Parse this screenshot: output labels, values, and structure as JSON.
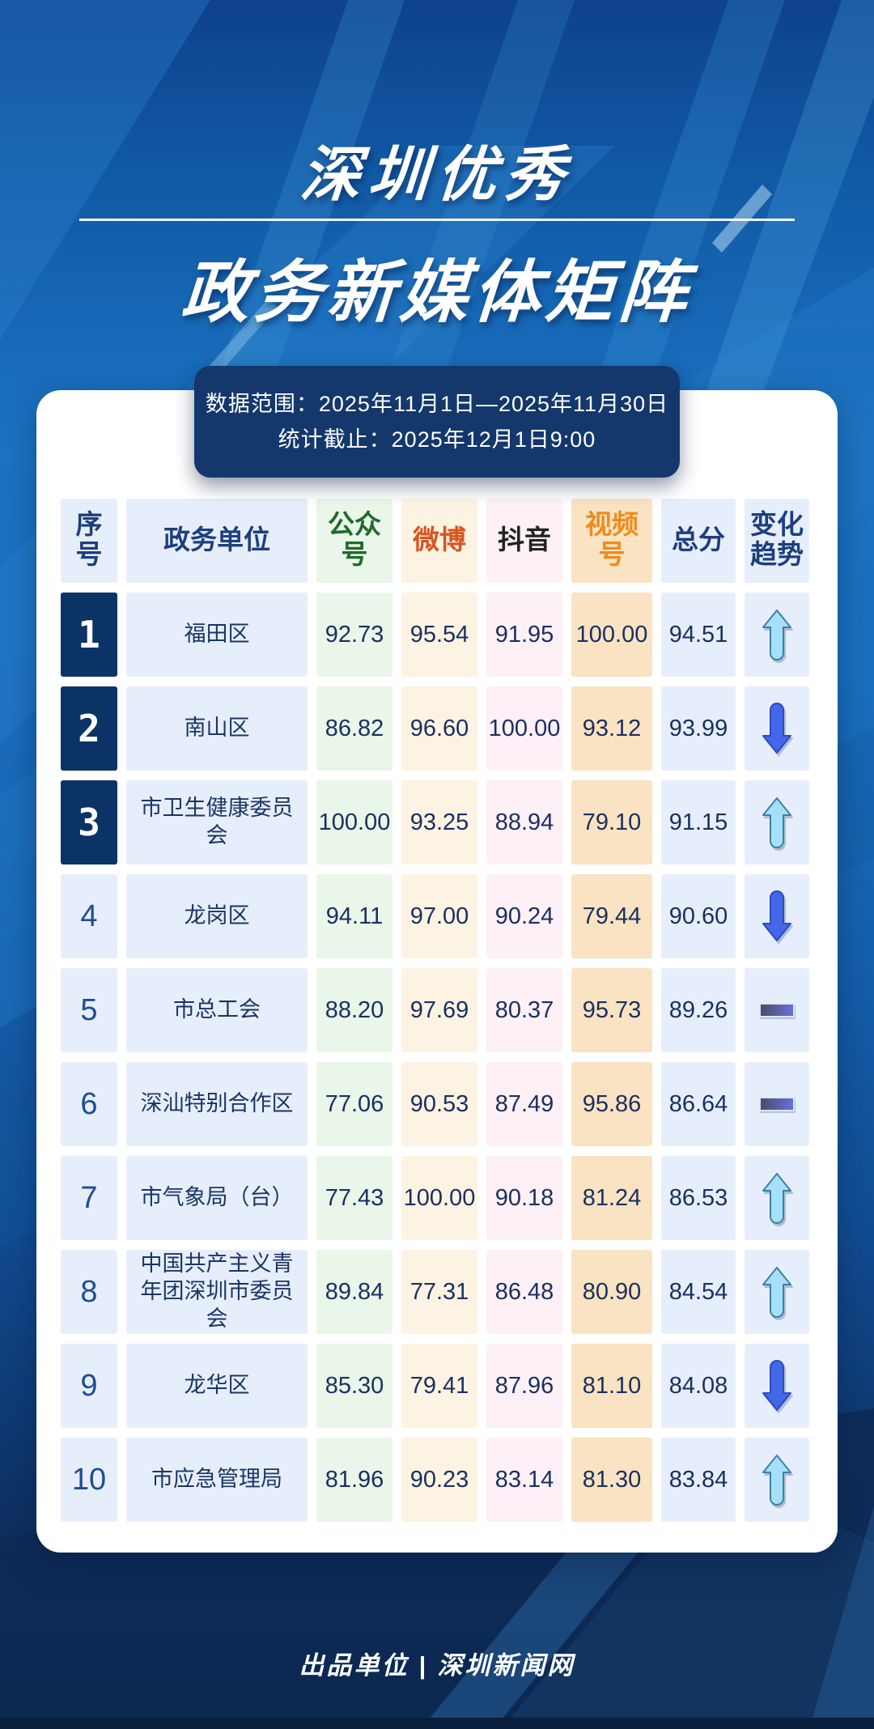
{
  "title": {
    "line1": "深圳优秀",
    "line2": "政务新媒体矩阵"
  },
  "meta": {
    "line1": "数据范围：2025年11月1日—2025年11月30日",
    "line2": "统计截止：2025年12月1日9:00"
  },
  "table": {
    "columns": [
      {
        "key": "rank",
        "label": "序号",
        "color": "#1c3f7e",
        "bg": "#e7eefb"
      },
      {
        "key": "unit",
        "label": "政务单位",
        "color": "#1c3f7e",
        "bg": "#e7eefb"
      },
      {
        "key": "gzh",
        "label": "公众号",
        "color": "#1e6b2a",
        "bg": "#e9f6e9"
      },
      {
        "key": "wb",
        "label": "微博",
        "color": "#d9541e",
        "bg": "#fdf3e3"
      },
      {
        "key": "dy",
        "label": "抖音",
        "color": "#222222",
        "bg": "#fdf0f7"
      },
      {
        "key": "sph",
        "label": "视频号",
        "color": "#ef8b1c",
        "bg": "#f9e3c2"
      },
      {
        "key": "total",
        "label": "总分",
        "color": "#1c3f7e",
        "bg": "#e7eefb"
      },
      {
        "key": "trend",
        "label": "变化趋势",
        "color": "#1c3f7e",
        "bg": "#e7eefb"
      }
    ],
    "rows": [
      {
        "rank": "1",
        "unit": "福田区",
        "gzh": "92.73",
        "wb": "95.54",
        "dy": "91.95",
        "sph": "100.00",
        "total": "94.51",
        "trend": "up"
      },
      {
        "rank": "2",
        "unit": "南山区",
        "gzh": "86.82",
        "wb": "96.60",
        "dy": "100.00",
        "sph": "93.12",
        "total": "93.99",
        "trend": "down"
      },
      {
        "rank": "3",
        "unit": "市卫生健康委员会",
        "gzh": "100.00",
        "wb": "93.25",
        "dy": "88.94",
        "sph": "79.10",
        "total": "91.15",
        "trend": "up"
      },
      {
        "rank": "4",
        "unit": "龙岗区",
        "gzh": "94.11",
        "wb": "97.00",
        "dy": "90.24",
        "sph": "79.44",
        "total": "90.60",
        "trend": "down"
      },
      {
        "rank": "5",
        "unit": "市总工会",
        "gzh": "88.20",
        "wb": "97.69",
        "dy": "80.37",
        "sph": "95.73",
        "total": "89.26",
        "trend": "flat"
      },
      {
        "rank": "6",
        "unit": "深汕特别合作区",
        "gzh": "77.06",
        "wb": "90.53",
        "dy": "87.49",
        "sph": "95.86",
        "total": "86.64",
        "trend": "flat"
      },
      {
        "rank": "7",
        "unit": "市气象局（台）",
        "gzh": "77.43",
        "wb": "100.00",
        "dy": "90.18",
        "sph": "81.24",
        "total": "86.53",
        "trend": "up"
      },
      {
        "rank": "8",
        "unit": "中国共产主义青年团深圳市委员会",
        "gzh": "89.84",
        "wb": "77.31",
        "dy": "86.48",
        "sph": "80.90",
        "total": "84.54",
        "trend": "up"
      },
      {
        "rank": "9",
        "unit": "龙华区",
        "gzh": "85.30",
        "wb": "79.41",
        "dy": "87.96",
        "sph": "81.10",
        "total": "84.08",
        "trend": "down"
      },
      {
        "rank": "10",
        "unit": "市应急管理局",
        "gzh": "81.96",
        "wb": "90.23",
        "dy": "83.14",
        "sph": "81.30",
        "total": "83.84",
        "trend": "up"
      }
    ]
  },
  "footer": {
    "text": "出品单位 | 深圳新闻网"
  },
  "colors": {
    "background_top": "#1b74c4",
    "background_bottom": "#0c2244",
    "card": "#ffffff",
    "badge": "#14386c",
    "rank_top_bg": "#0c3366",
    "navy_text": "#1c3566",
    "trend_up": "#a6e0f8",
    "trend_up_edge": "#3d7fa8",
    "trend_down": "#4467ea",
    "trend_down_edge": "#2c4cc0",
    "trend_flat_left": "#474f63",
    "trend_flat_right": "#6a6ede"
  }
}
